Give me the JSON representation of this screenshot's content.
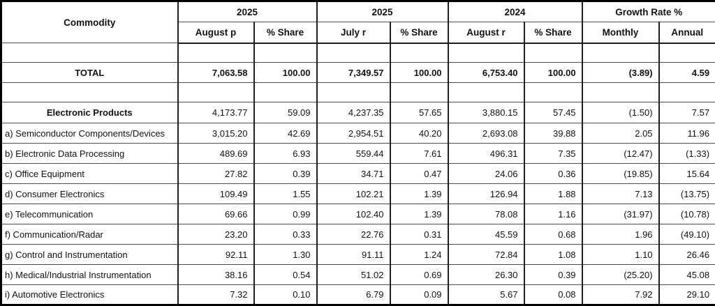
{
  "table": {
    "commodity_header": "Commodity",
    "col_groups": [
      {
        "label": "2025",
        "sub": [
          "August p",
          "% Share"
        ]
      },
      {
        "label": "2025",
        "sub": [
          "July r",
          "% Share"
        ]
      },
      {
        "label": "2024",
        "sub": [
          "August r",
          "% Share"
        ]
      },
      {
        "label": "Growth Rate %",
        "sub": [
          "Monthly",
          "Annual"
        ]
      }
    ],
    "total_row": {
      "label": "TOTAL",
      "values": [
        "7,063.58",
        "100.00",
        "7,349.57",
        "100.00",
        "6,753.40",
        "100.00",
        "(3.89)",
        "4.59"
      ]
    },
    "group_row": {
      "label": "Electronic Products",
      "values": [
        "4,173.77",
        "59.09",
        "4,237.35",
        "57.65",
        "3,880.15",
        "57.45",
        "(1.50)",
        "7.57"
      ]
    },
    "rows": [
      {
        "label": "a) Semiconductor Components/Devices",
        "values": [
          "3,015.20",
          "42.69",
          "2,954.51",
          "40.20",
          "2,693.08",
          "39.88",
          "2.05",
          "11.96"
        ]
      },
      {
        "label": "b) Electronic Data Processing",
        "values": [
          "489.69",
          "6.93",
          "559.44",
          "7.61",
          "496.31",
          "7.35",
          "(12.47)",
          "(1.33)"
        ]
      },
      {
        "label": "c) Office Equipment",
        "values": [
          "27.82",
          "0.39",
          "34.71",
          "0.47",
          "24.06",
          "0.36",
          "(19.85)",
          "15.64"
        ]
      },
      {
        "label": "d) Consumer Electronics",
        "values": [
          "109.49",
          "1.55",
          "102.21",
          "1.39",
          "126.94",
          "1.88",
          "7.13",
          "(13.75)"
        ]
      },
      {
        "label": "e) Telecommunication",
        "values": [
          "69.66",
          "0.99",
          "102.40",
          "1.39",
          "78.08",
          "1.16",
          "(31.97)",
          "(10.78)"
        ]
      },
      {
        "label": "f) Communication/Radar",
        "values": [
          "23.20",
          "0.33",
          "22.76",
          "0.31",
          "45.59",
          "0.68",
          "1.96",
          "(49.10)"
        ]
      },
      {
        "label": "g) Control and Instrumentation",
        "values": [
          "92.11",
          "1.30",
          "91.11",
          "1.24",
          "72.84",
          "1.08",
          "1.10",
          "26.46"
        ]
      },
      {
        "label": "h) Medical/Industrial Instrumentation",
        "values": [
          "38.16",
          "0.54",
          "51.02",
          "0.69",
          "26.30",
          "0.39",
          "(25.20)",
          "45.08"
        ]
      },
      {
        "label": "i) Automotive Electronics",
        "values": [
          "7.32",
          "0.10",
          "6.79",
          "0.09",
          "5.67",
          "0.08",
          "7.92",
          "29.10"
        ]
      }
    ],
    "colors": {
      "border_outer": "#000000",
      "border_inner": "#4a4a4a",
      "text": "#111111",
      "background": "#ffffff"
    }
  }
}
